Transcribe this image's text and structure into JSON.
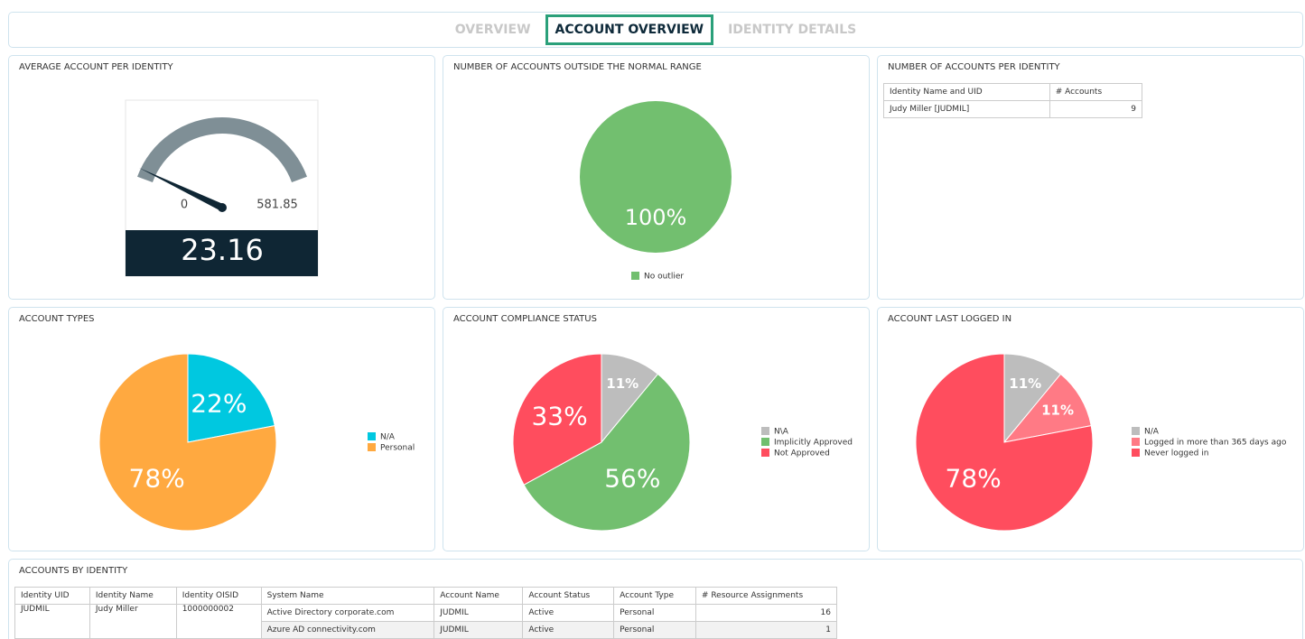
{
  "tabs": [
    "OVERVIEW",
    "ACCOUNT OVERVIEW",
    "IDENTITY DETAILS"
  ],
  "active_tab": 1,
  "gauge": {
    "title": "AVERAGE ACCOUNT PER IDENTITY",
    "min": 0,
    "max": 581.85,
    "value": 23.16
  },
  "identity_table": {
    "title": "NUMBER OF ACCOUNTS PER IDENTITY",
    "columns": [
      "Identity Name and UID",
      "# Accounts"
    ],
    "rows": [
      [
        "Judy Miller [JUDMIL]",
        9
      ]
    ]
  },
  "chart_data": [
    {
      "type": "pie",
      "title": "NUMBER OF ACCOUNTS OUTSIDE THE NORMAL RANGE",
      "categories": [
        "No outlier"
      ],
      "values": [
        100
      ],
      "value_labels": [
        "100%"
      ],
      "colors": [
        "#72bf6f"
      ]
    },
    {
      "type": "pie",
      "title": "ACCOUNT TYPES",
      "categories": [
        "N/A",
        "Personal"
      ],
      "values": [
        22,
        78
      ],
      "value_labels": [
        "22%",
        "78%"
      ],
      "colors": [
        "#00c8e0",
        "#ffa940"
      ]
    },
    {
      "type": "pie",
      "title": "ACCOUNT COMPLIANCE STATUS",
      "categories": [
        "N\\A",
        "Implicitly Approved",
        "Not Approved"
      ],
      "values": [
        11,
        56,
        33
      ],
      "value_labels": [
        "11%",
        "56%",
        "33%"
      ],
      "colors": [
        "#bdbdbd",
        "#72bf6f",
        "#ff4d5e"
      ]
    },
    {
      "type": "pie",
      "title": "ACCOUNT LAST LOGGED IN",
      "categories": [
        "N/A",
        "Logged in more than 365 days ago",
        "Never logged in"
      ],
      "values": [
        11,
        11,
        78
      ],
      "value_labels": [
        "11%",
        "11%",
        "78%"
      ],
      "colors": [
        "#bdbdbd",
        "#ff7a85",
        "#ff4d5e"
      ]
    }
  ],
  "accounts_table": {
    "title": "ACCOUNTS BY IDENTITY",
    "columns": [
      "Identity UID",
      "Identity Name",
      "Identity OISID",
      "System Name",
      "Account Name",
      "Account Status",
      "Account Type",
      "# Resource Assignments"
    ],
    "identity": [
      "JUDMIL",
      "Judy Miller",
      "1000000002"
    ],
    "rows": [
      [
        "Active Directory corporate.com",
        "JUDMIL",
        "Active",
        "Personal",
        16
      ],
      [
        "Azure AD connectivity.com",
        "JUDMIL",
        "Active",
        "Personal",
        1
      ]
    ]
  }
}
